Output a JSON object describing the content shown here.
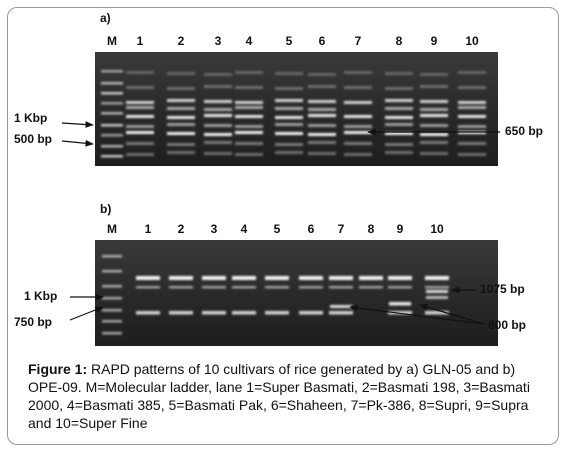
{
  "panels": [
    {
      "label": "a)",
      "lanes": [
        "M",
        "1",
        "2",
        "3",
        "4",
        "5",
        "6",
        "7",
        "8",
        "9",
        "10"
      ],
      "annotations": [
        "1 Kbp",
        "500 bp",
        "650 bp"
      ]
    },
    {
      "label": "b)",
      "lanes": [
        "M",
        "1",
        "2",
        "3",
        "4",
        "5",
        "6",
        "7",
        "8",
        "9",
        "10"
      ],
      "annotations": [
        "1 Kbp",
        "750 bp",
        "1075 bp",
        "800 bp"
      ]
    }
  ],
  "caption": {
    "label": "Figure 1:",
    "text": "RAPD patterns of 10 cultivars of rice generated by a) GLN-05 and b) OPE-09. M=Molecular ladder, lane 1=Super Basmati, 2=Basmati 198, 3=Basmati 2000, 4=Basmati 385, 5=Basmati Pak, 6=Shaheen, 7=Pk-386, 8=Supri, 9=Supra and 10=Super Fine"
  }
}
